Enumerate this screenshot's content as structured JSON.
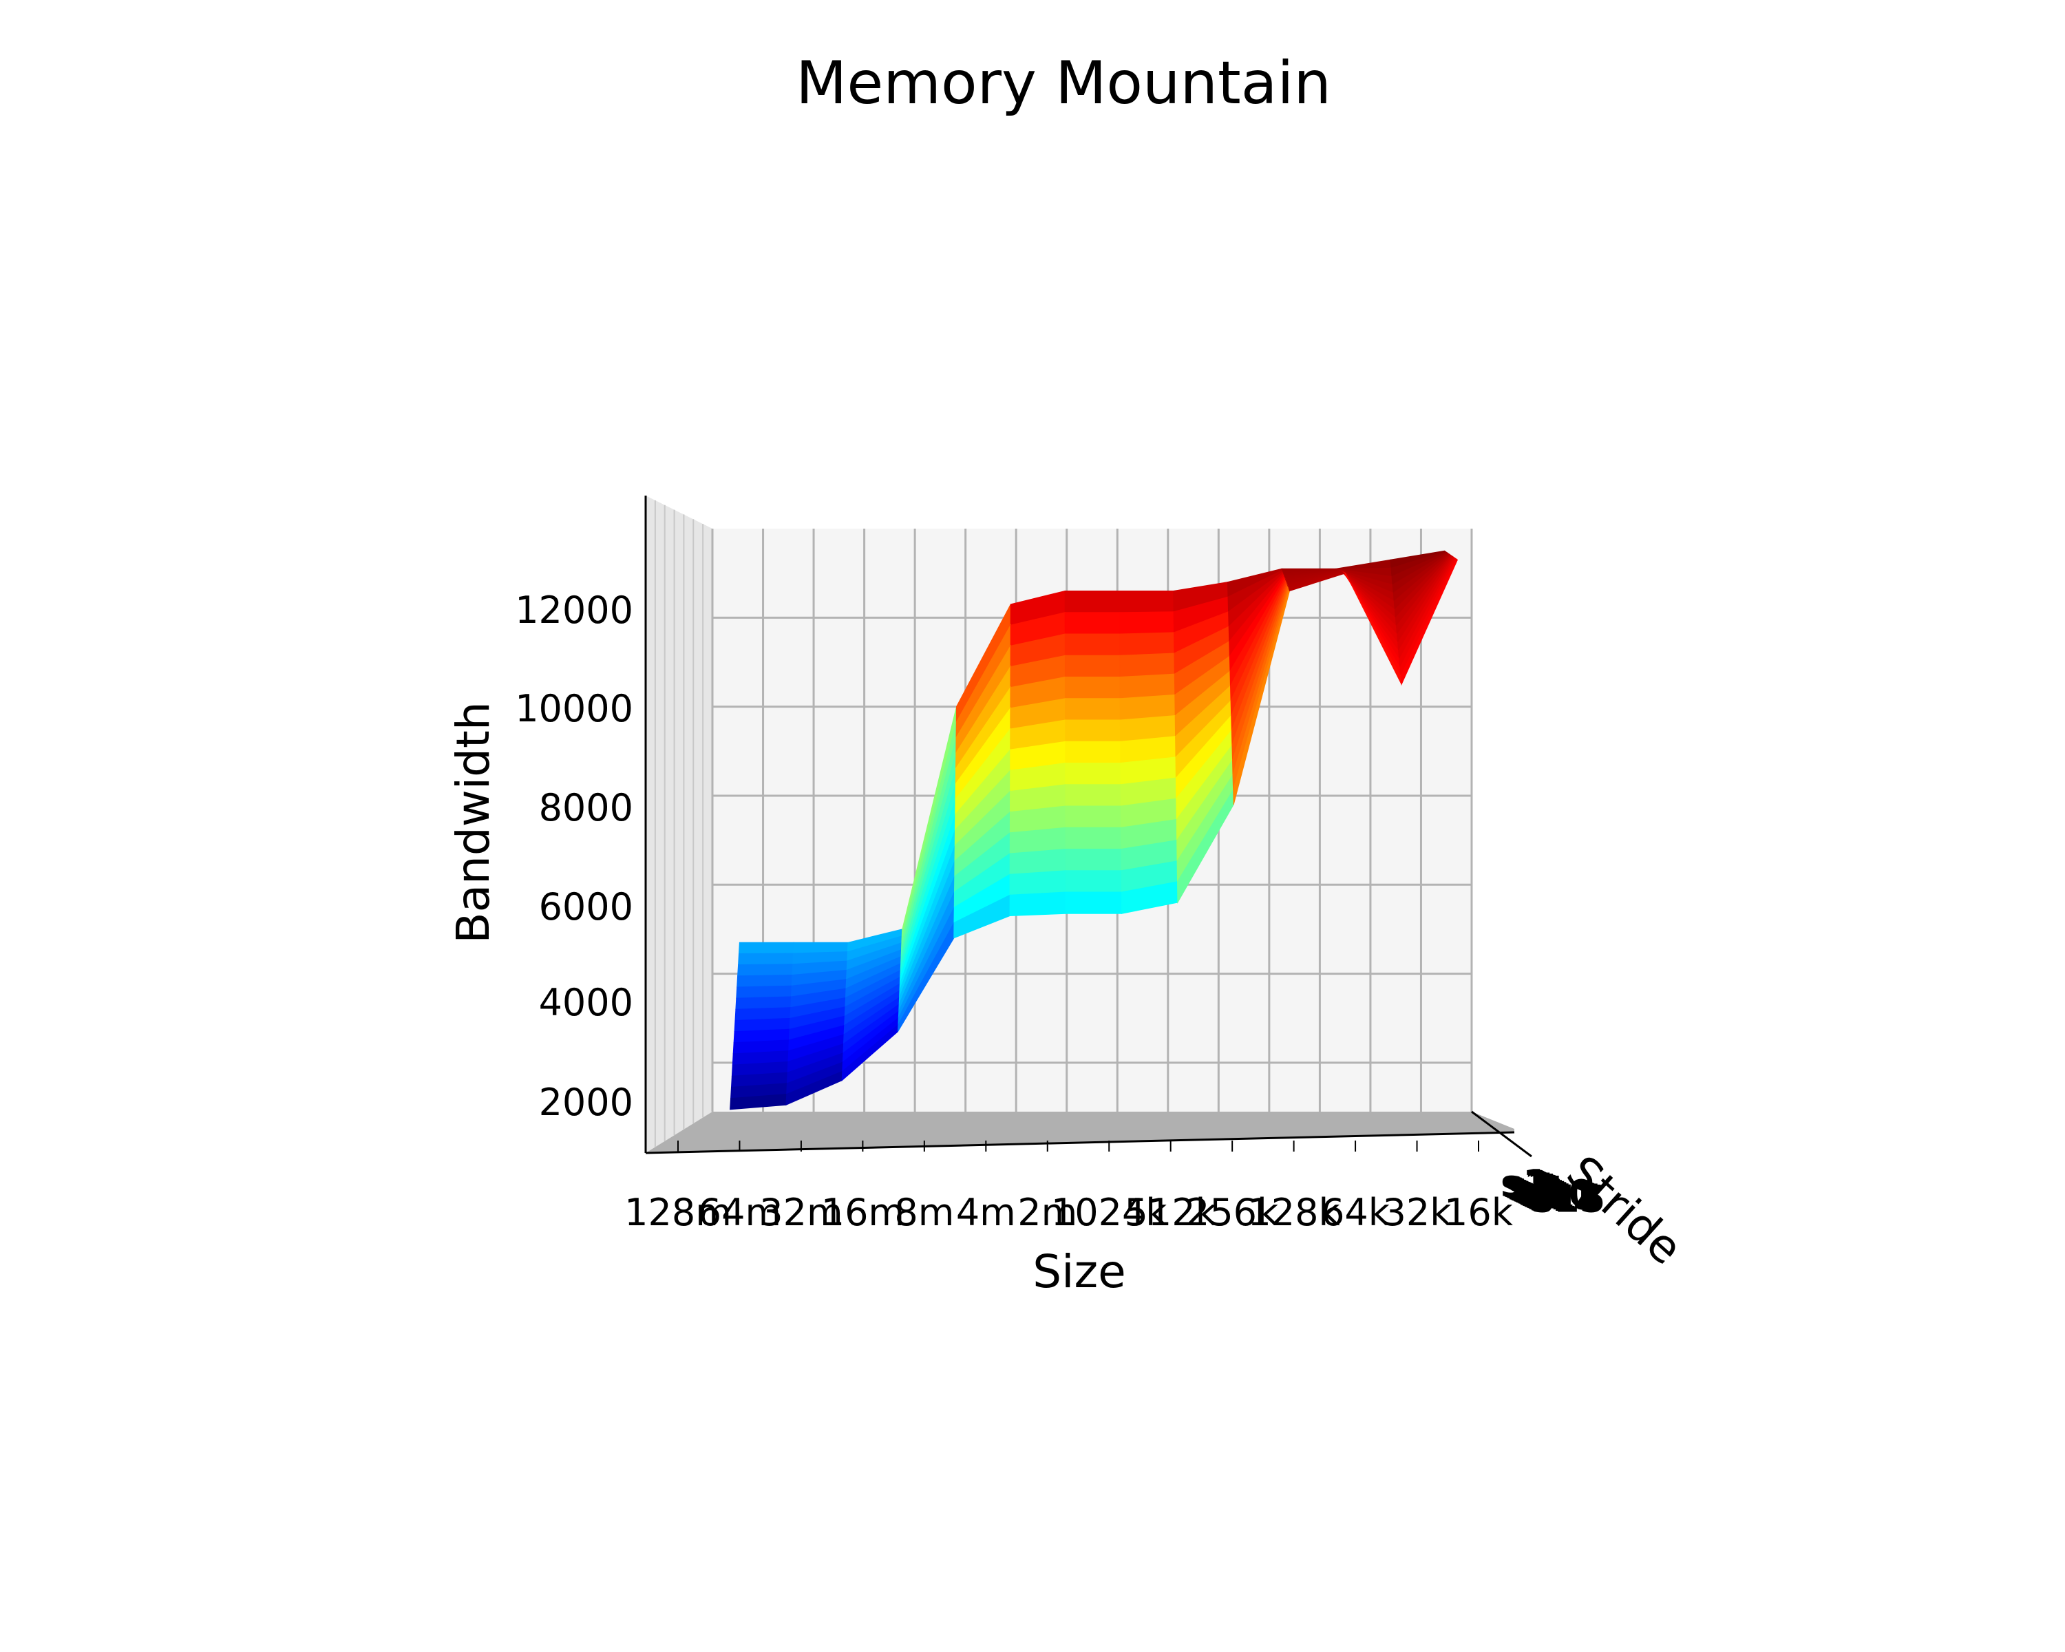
{
  "chart_data": {
    "type": "surface",
    "title": "Memory Mountain",
    "xlabel": "Size",
    "ylabel": "Stride",
    "zlabel": "Bandwidth",
    "x_ticks": [
      "128m",
      "64m",
      "32m",
      "16m",
      "8m",
      "4m",
      "2m",
      "1024k",
      "512k",
      "256k",
      "128k",
      "64k",
      "32k",
      "16k"
    ],
    "y_ticks": [
      "s1",
      "s2",
      "s3",
      "s4",
      "s5",
      "s6",
      "s7",
      "s8",
      "s9",
      "s10",
      "s11",
      "s12",
      "s13",
      "s14",
      "s15"
    ],
    "z_ticks": [
      "2000",
      "4000",
      "6000",
      "8000",
      "10000",
      "12000"
    ],
    "zlim": [
      900,
      14000
    ],
    "grid": true,
    "colormap": "jet",
    "front_edge_s15": [
      950,
      1050,
      1600,
      2700,
      4800,
      5300,
      5350,
      5350,
      5600,
      7800,
      12600,
      13000,
      10500,
      13300
    ],
    "back_edge_s1": [
      4700,
      4700,
      4700,
      5000,
      10000,
      12300,
      12600,
      12600,
      12600,
      12800,
      13100,
      13100,
      13300,
      13500
    ]
  }
}
